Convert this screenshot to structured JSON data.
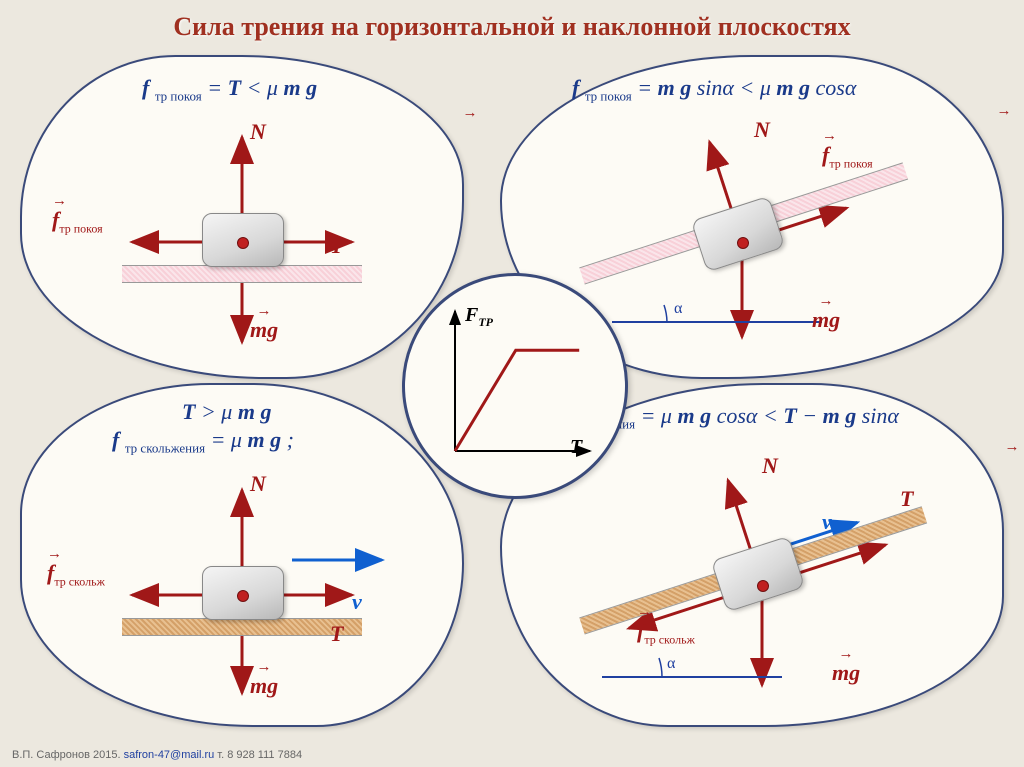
{
  "title": "Сила трения на горизонтальной и наклонной плоскостях",
  "colors": {
    "title": "#a03020",
    "equation": "#1a3a8a",
    "force_arrow": "#a01818",
    "velocity_arrow": "#1060d0",
    "panel_bg": "#fdfbf5",
    "panel_border": "#3a4a7a",
    "page_bg": "#ece8df",
    "surface_pink": "#f8d0d8",
    "surface_brown": "#d4a068",
    "graph_line": "#a01818",
    "axis": "#000000"
  },
  "center_graph": {
    "y_label": "F",
    "y_label_sub": "ТР",
    "x_label": "T",
    "break_x": 0.45,
    "break_y": 0.72,
    "end_x": 0.92,
    "end_y": 0.72
  },
  "panels": {
    "tl": {
      "equation_html": "<span class='bold'>f</span> <span class='sub'>тр покоя</span> = <span class='bold'>T</span> &lt; μ<span class='bold'> m g</span>",
      "surface": "pink",
      "labels": {
        "N": "N",
        "T": "T",
        "mg": "mg",
        "f": "f",
        "f_sub": "тр покоя"
      }
    },
    "tr": {
      "equation_html": "<span class='bold'>f</span> <span class='sub'>тр покоя</span> = <span class='bold'>m g</span> sinα &lt; μ<span class='bold'> m g</span> cosα",
      "surface": "pink",
      "angle_label": "α",
      "labels": {
        "N": "N",
        "mg": "mg",
        "f": "f",
        "f_sub": "тр покоя"
      }
    },
    "bl": {
      "equation1_html": "<span class='bold'>T</span> &gt; μ<span class='bold'> m g</span>",
      "equation2_html": "<span class='bold'>f</span> <span class='sub'>тр скольжения</span> = μ<span class='bold'> m g</span> ;",
      "surface": "brown",
      "labels": {
        "N": "N",
        "T": "T",
        "mg": "mg",
        "v": "v",
        "f": "f",
        "f_sub": "тр скольж"
      }
    },
    "br": {
      "equation_html": "<span class='bold'>f</span> <span class='sub'>тр скольжения</span> = μ<span class='bold'> m g</span> cosα &lt; <span class='bold'>T</span> − <span class='bold'>m g</span> sinα",
      "surface": "brown",
      "angle_label": "α",
      "labels": {
        "N": "N",
        "T": "T",
        "mg": "mg",
        "v": "v",
        "f": "f",
        "f_sub": "тр скольж"
      }
    }
  },
  "footer": {
    "author": "В.П. Сафронов 2015.",
    "email": "safron-47@mail.ru",
    "phone": "т. 8 928 111 7884"
  }
}
